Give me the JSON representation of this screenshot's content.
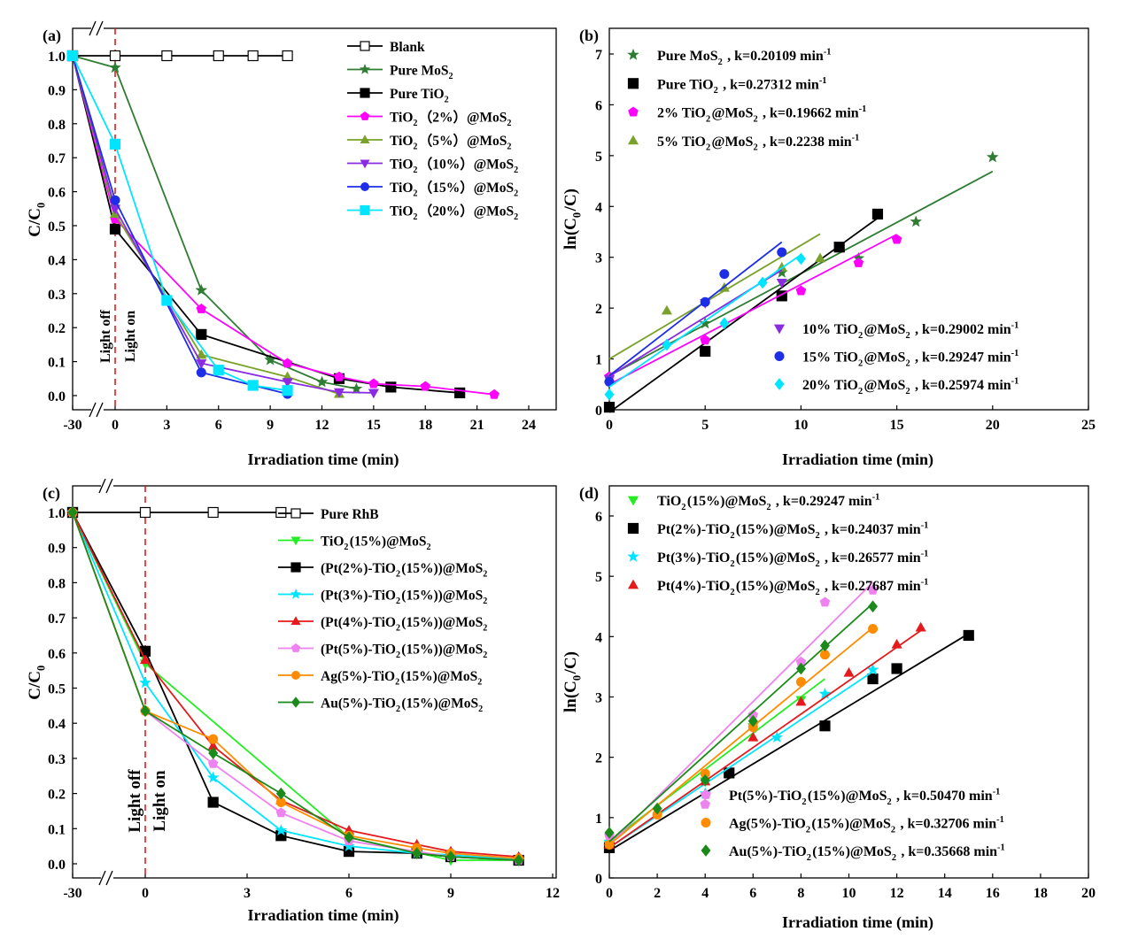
{
  "chart_data": [
    {
      "panel_label": "(a)",
      "type": "line",
      "xlabel": "Irradiation time (min)",
      "ylabel": "C/C0",
      "xlim": [
        -30,
        24
      ],
      "ylim": [
        0,
        1.0
      ],
      "x_ticks": [
        "-30",
        "0",
        "3",
        "6",
        "9",
        "12",
        "15",
        "18",
        "21",
        "24"
      ],
      "y_ticks": [
        "0.0",
        "0.1",
        "0.2",
        "0.3",
        "0.4",
        "0.5",
        "0.6",
        "0.7",
        "0.8",
        "0.9",
        "1.0"
      ],
      "axis_break": true,
      "annotations": {
        "light_off": "Light off",
        "light_on": "Light on"
      },
      "legend_position": "top-right",
      "series": [
        {
          "name": "Blank",
          "color": "#000000",
          "marker": "square-open",
          "x": [
            -30,
            0,
            3,
            6,
            8,
            10
          ],
          "y": [
            1.0,
            1.0,
            1.0,
            1.0,
            1.0,
            1.0
          ]
        },
        {
          "name": "Pure MoS2",
          "color": "#2e7d32",
          "marker": "star",
          "x": [
            -30,
            0,
            5,
            9,
            12,
            14
          ],
          "y": [
            1.0,
            0.965,
            0.31,
            0.105,
            0.04,
            0.02
          ]
        },
        {
          "name": "Pure TiO2",
          "color": "#000000",
          "marker": "square",
          "x": [
            -30,
            0,
            5,
            13,
            16,
            20
          ],
          "y": [
            1.0,
            0.49,
            0.18,
            0.05,
            0.025,
            0.008
          ]
        },
        {
          "name": "TiO2（2%）@MoS2",
          "color": "#ff00ff",
          "marker": "pentagon",
          "x": [
            -30,
            0,
            5,
            10,
            13,
            15,
            18,
            22
          ],
          "y": [
            1.0,
            0.52,
            0.255,
            0.095,
            0.055,
            0.035,
            0.027,
            0.003
          ]
        },
        {
          "name": "TiO2（5%）@MoS2",
          "color": "#7aa22b",
          "marker": "triangle-up",
          "x": [
            -30,
            0,
            5,
            10,
            13
          ],
          "y": [
            1.0,
            0.535,
            0.12,
            0.055,
            0.005
          ]
        },
        {
          "name": "TiO2（10%）@MoS2",
          "color": "#8a2be2",
          "marker": "triangle-down",
          "x": [
            -30,
            0,
            5,
            10,
            13,
            15
          ],
          "y": [
            1.0,
            0.55,
            0.095,
            0.04,
            0.01,
            0.008
          ]
        },
        {
          "name": "TiO2（15%）@MoS2",
          "color": "#1e2ee6",
          "marker": "circle",
          "x": [
            -30,
            0,
            5,
            10
          ],
          "y": [
            1.0,
            0.575,
            0.068,
            0.005
          ]
        },
        {
          "name": "TiO2（20%）@MoS2",
          "color": "#00e5ff",
          "marker": "square",
          "x": [
            -30,
            0,
            3,
            6,
            8,
            10
          ],
          "y": [
            1.0,
            0.74,
            0.28,
            0.075,
            0.03,
            0.015
          ]
        }
      ]
    },
    {
      "panel_label": "(b)",
      "type": "scatter",
      "xlabel": "Irradiation time (min)",
      "ylabel": "ln(C0/C)",
      "xlim": [
        0,
        25
      ],
      "ylim": [
        0,
        7
      ],
      "x_ticks": [
        "0",
        "5",
        "10",
        "15",
        "20",
        "25"
      ],
      "y_ticks": [
        "0",
        "1",
        "2",
        "3",
        "4",
        "5",
        "6",
        "7"
      ],
      "series": [
        {
          "name": "Pure MoS2",
          "k_text": "k=0.20109 min-1",
          "color": "#2e7d32",
          "marker": "star",
          "x": [
            5,
            9,
            13,
            16,
            20
          ],
          "y": [
            1.7,
            2.7,
            2.98,
            3.7,
            4.97
          ],
          "fit": [
            [
              0,
              0.67
            ],
            [
              20,
              4.69
            ]
          ]
        },
        {
          "name": "Pure TiO2",
          "k_text": "k=0.27312 min-1",
          "color": "#000000",
          "marker": "square",
          "x": [
            0,
            5,
            9,
            12,
            14
          ],
          "y": [
            0.05,
            1.15,
            2.24,
            3.2,
            3.85
          ],
          "fit": [
            [
              0,
              -0.05
            ],
            [
              14,
              3.77
            ]
          ]
        },
        {
          "name": "2% TiO2@MoS2",
          "k_text": "k=0.19662 min-1",
          "color": "#ff00ff",
          "marker": "pentagon",
          "x": [
            0,
            5,
            10,
            13,
            15
          ],
          "y": [
            0.65,
            1.37,
            2.34,
            2.89,
            3.35
          ],
          "fit": [
            [
              0,
              0.5
            ],
            [
              15,
              3.45
            ]
          ]
        },
        {
          "name": "5% TiO2@MoS2",
          "k_text": "k=0.2238 min-1",
          "color": "#7aa22b",
          "marker": "triangle-up",
          "x": [
            0,
            3,
            6,
            9,
            11
          ],
          "y": [
            0.62,
            1.95,
            2.4,
            2.8,
            2.98
          ],
          "fit": [
            [
              0,
              1.0
            ],
            [
              11,
              3.46
            ]
          ]
        },
        {
          "name": "10% TiO2@MoS2",
          "k_text": "k=0.29002 min-1",
          "color": "#8a2be2",
          "marker": "triangle-down",
          "x": [
            0,
            5,
            9
          ],
          "y": [
            0.6,
            2.1,
            2.5
          ],
          "fit": [
            [
              0,
              0.66
            ],
            [
              9,
              2.75
            ]
          ]
        },
        {
          "name": "15% TiO2@MoS2",
          "k_text": "k=0.29247 min-1",
          "color": "#1e2ee6",
          "marker": "circle",
          "x": [
            0,
            5,
            6,
            9
          ],
          "y": [
            0.55,
            2.12,
            2.67,
            3.1
          ],
          "fit": [
            [
              0,
              0.67
            ],
            [
              9,
              3.3
            ]
          ]
        },
        {
          "name": "20% TiO2@MoS2",
          "k_text": "k=0.25974 min-1",
          "color": "#00e5ff",
          "marker": "diamond",
          "x": [
            0,
            3,
            6,
            8,
            10
          ],
          "y": [
            0.3,
            1.28,
            1.7,
            2.5,
            2.97
          ],
          "fit": [
            [
              0,
              0.45
            ],
            [
              10,
              3.05
            ]
          ]
        }
      ]
    },
    {
      "panel_label": "(c)",
      "type": "line",
      "xlabel": "Irradiation time (min)",
      "ylabel": "C/C0",
      "xlim": [
        -30,
        12
      ],
      "ylim": [
        0,
        1.0
      ],
      "x_ticks": [
        "-30",
        "0",
        "3",
        "6",
        "9",
        "12"
      ],
      "y_ticks": [
        "0.0",
        "0.1",
        "0.2",
        "0.3",
        "0.4",
        "0.5",
        "0.6",
        "0.7",
        "0.8",
        "0.9",
        "1.0"
      ],
      "axis_break": true,
      "annotations": {
        "light_off": "Light off",
        "light_on": "Light on"
      },
      "legend_position": "top-right",
      "series": [
        {
          "name": "Pure RhB",
          "color": "#000000",
          "marker": "square-open",
          "x": [
            -30,
            0,
            2,
            4
          ],
          "y": [
            1.0,
            1.0,
            1.0,
            1.0
          ]
        },
        {
          "name": "TiO2(15%)@MoS2",
          "color": "#22ee22",
          "marker": "triangle-down",
          "x": [
            -30,
            0,
            6,
            9,
            11
          ],
          "y": [
            1.0,
            0.57,
            0.075,
            0.01,
            0.01
          ]
        },
        {
          "name": "(Pt(2%)-TiO2(15%))@MoS2",
          "color": "#000000",
          "marker": "square",
          "x": [
            -30,
            0,
            2,
            4,
            6,
            8,
            9,
            11
          ],
          "y": [
            1.0,
            0.605,
            0.175,
            0.08,
            0.035,
            0.03,
            0.02,
            0.01
          ]
        },
        {
          "name": "(Pt(3%)-TiO2(15%))@MoS2",
          "color": "#00e5ff",
          "marker": "star",
          "x": [
            -30,
            0,
            2,
            4,
            6,
            8,
            9,
            11
          ],
          "y": [
            1.0,
            0.515,
            0.245,
            0.095,
            0.05,
            0.03,
            0.025,
            0.012
          ]
        },
        {
          "name": "(Pt(4%)-TiO2(15%))@MoS2",
          "color": "#e41a1c",
          "marker": "triangle-up",
          "x": [
            -30,
            0,
            2,
            4,
            6,
            8,
            9,
            11
          ],
          "y": [
            1.0,
            0.58,
            0.335,
            0.18,
            0.095,
            0.055,
            0.035,
            0.02
          ]
        },
        {
          "name": "(Pt(5%)-TiO2(15%))@MoS2",
          "color": "#ee82ee",
          "marker": "pentagon",
          "x": [
            -30,
            0,
            2,
            4,
            6,
            8,
            9,
            11
          ],
          "y": [
            1.0,
            0.435,
            0.285,
            0.145,
            0.065,
            0.035,
            0.02,
            0.01
          ]
        },
        {
          "name": "Ag(5%)-TiO2(15%)@MoS2",
          "color": "#ff8c00",
          "marker": "circle",
          "x": [
            -30,
            0,
            2,
            4,
            6,
            8,
            9,
            11
          ],
          "y": [
            1.0,
            0.435,
            0.355,
            0.175,
            0.08,
            0.045,
            0.03,
            0.015
          ]
        },
        {
          "name": "Au(5%)-TiO2(15%)@MoS2",
          "color": "#1b8a1b",
          "marker": "diamond",
          "x": [
            -30,
            0,
            2,
            4,
            6,
            8,
            9,
            11
          ],
          "y": [
            1.0,
            0.435,
            0.315,
            0.2,
            0.075,
            0.03,
            0.02,
            0.01
          ]
        }
      ]
    },
    {
      "panel_label": "(d)",
      "type": "scatter",
      "xlabel": "Irradiation time (min)",
      "ylabel": "ln(C0/C)",
      "xlim": [
        0,
        20
      ],
      "ylim": [
        0,
        6.5
      ],
      "x_ticks": [
        "0",
        "2",
        "4",
        "6",
        "8",
        "10",
        "12",
        "14",
        "16",
        "18",
        "20"
      ],
      "y_ticks": [
        "0",
        "1",
        "2",
        "3",
        "4",
        "5",
        "6"
      ],
      "series": [
        {
          "name": "TiO2(15%)@MoS2",
          "k_text": "k=0.29247 min-1",
          "color": "#22ee22",
          "marker": "triangle-down",
          "x": [
            0,
            4,
            6,
            8
          ],
          "y": [
            0.55,
            1.6,
            2.5,
            2.95
          ],
          "fit": [
            [
              0,
              0.6
            ],
            [
              9,
              3.3
            ]
          ]
        },
        {
          "name": "Pt(2%)-TiO2(15%)@MoS2",
          "k_text": "k=0.24037 min-1",
          "color": "#000000",
          "marker": "square",
          "x": [
            0,
            5,
            9,
            11,
            12,
            15
          ],
          "y": [
            0.5,
            1.74,
            2.52,
            3.3,
            3.47,
            4.02
          ],
          "fit": [
            [
              0,
              0.45
            ],
            [
              15,
              4.05
            ]
          ]
        },
        {
          "name": "Pt(3%)-TiO2(15%)@MoS2",
          "k_text": "k=0.26577 min-1",
          "color": "#00e5ff",
          "marker": "star",
          "x": [
            0,
            4,
            7,
            9,
            11
          ],
          "y": [
            0.6,
            1.4,
            2.33,
            3.05,
            3.45
          ],
          "fit": [
            [
              0,
              0.5
            ],
            [
              11,
              3.42
            ]
          ]
        },
        {
          "name": "Pt(4%)-TiO2(15%)@MoS2",
          "k_text": "k=0.27687 min-1",
          "color": "#e41a1c",
          "marker": "triangle-up",
          "x": [
            0,
            4,
            6,
            8,
            10,
            12,
            13
          ],
          "y": [
            0.55,
            1.6,
            2.33,
            2.92,
            3.4,
            3.87,
            4.15
          ],
          "fit": [
            [
              0,
              0.5
            ],
            [
              13,
              4.1
            ]
          ]
        },
        {
          "name": "Pt(5%)-TiO2(15%)@MoS2",
          "k_text": "k=0.50470 min-1",
          "color": "#ee82ee",
          "marker": "pentagon",
          "x": [
            0,
            4,
            6,
            8,
            9,
            11
          ],
          "y": [
            0.7,
            1.22,
            2.7,
            3.58,
            4.57,
            4.77
          ],
          "fit": [
            [
              0,
              0.55
            ],
            [
              11,
              4.9
            ]
          ]
        },
        {
          "name": "Ag(5%)-TiO2(15%)@MoS2",
          "k_text": "k=0.32706 min-1",
          "color": "#ff8c00",
          "marker": "circle",
          "x": [
            0,
            2,
            4,
            6,
            8,
            9,
            11
          ],
          "y": [
            0.55,
            1.05,
            1.73,
            2.5,
            3.25,
            3.7,
            4.13
          ],
          "fit": [
            [
              0,
              0.55
            ],
            [
              11,
              4.15
            ]
          ]
        },
        {
          "name": "Au(5%)-TiO2(15%)@MoS2",
          "k_text": "k=0.35668 min-1",
          "color": "#1b8a1b",
          "marker": "diamond",
          "x": [
            0,
            2,
            4,
            6,
            8,
            9,
            11
          ],
          "y": [
            0.75,
            1.15,
            1.62,
            2.6,
            3.47,
            3.85,
            4.5
          ],
          "fit": [
            [
              0,
              0.6
            ],
            [
              11,
              4.55
            ]
          ]
        }
      ]
    }
  ]
}
